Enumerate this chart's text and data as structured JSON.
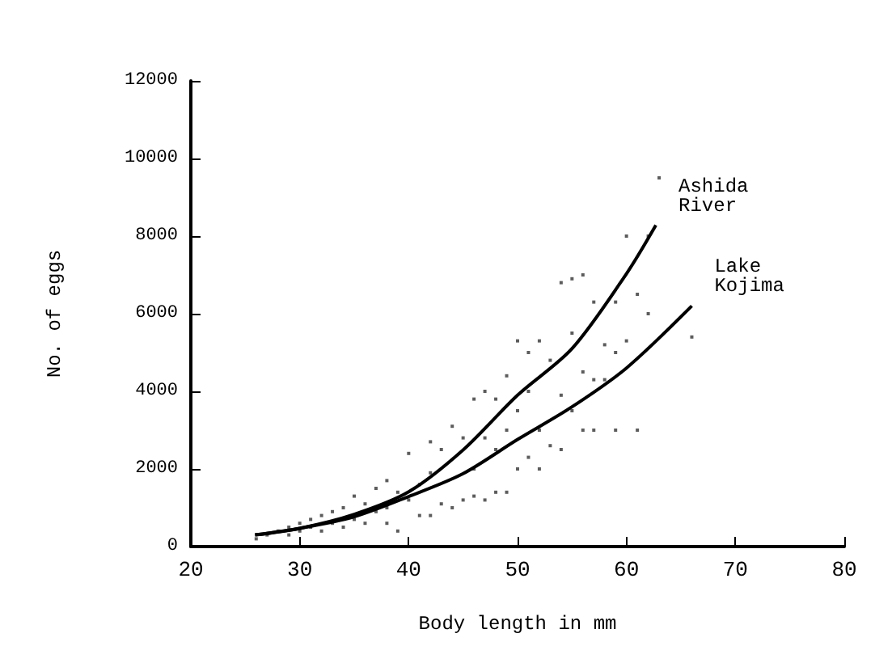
{
  "chart_data": {
    "type": "scatter",
    "xlabel": "Body length in mm",
    "ylabel": "No. of eggs",
    "xlim": [
      20,
      80
    ],
    "xticks": [
      20,
      30,
      40,
      50,
      60,
      70,
      80
    ],
    "ylim": [
      0,
      12000
    ],
    "yticks": [
      0,
      2000,
      4000,
      6000,
      8000,
      10000,
      12000
    ],
    "grid": false,
    "legend": false,
    "series": [
      {
        "color": "#333333",
        "marker": "square",
        "x": [
          26,
          27,
          28,
          29,
          29,
          30,
          30,
          31,
          31,
          32,
          32,
          33,
          33,
          34,
          34,
          35,
          35,
          36,
          36,
          37,
          37,
          38,
          38,
          38,
          39,
          39,
          40,
          40,
          41,
          41,
          42,
          42,
          42,
          43,
          43,
          44,
          44,
          45,
          45,
          46,
          46,
          46,
          47,
          47,
          47,
          48,
          48,
          48,
          49,
          49,
          49,
          50,
          50,
          50,
          51,
          51,
          51,
          52,
          52,
          52,
          53,
          53,
          54,
          54,
          54,
          55,
          55,
          55,
          56,
          56,
          56,
          57,
          57,
          57,
          58,
          58,
          59,
          59,
          59,
          60,
          60,
          61,
          61,
          62,
          62,
          63,
          66
        ],
        "values": [
          200,
          300,
          400,
          500,
          300,
          600,
          400,
          700,
          500,
          800,
          400,
          900,
          600,
          1000,
          500,
          1300,
          700,
          1100,
          600,
          1500,
          900,
          1700,
          1000,
          600,
          1400,
          400,
          2400,
          1200,
          1600,
          800,
          2700,
          1900,
          800,
          2500,
          1100,
          3100,
          1000,
          2800,
          1200,
          3800,
          2000,
          1300,
          4000,
          2800,
          1200,
          3800,
          2500,
          1400,
          4400,
          3000,
          1400,
          5300,
          3500,
          2000,
          5000,
          4000,
          2300,
          5300,
          3000,
          2000,
          4800,
          2600,
          6800,
          3900,
          2500,
          6900,
          5500,
          3500,
          7000,
          4500,
          3000,
          6300,
          4300,
          3000,
          5200,
          4300,
          6300,
          5000,
          3000,
          8000,
          5300,
          6500,
          3000,
          8000,
          6000,
          9500,
          5400
        ]
      },
      {
        "type": "line",
        "name": "Ashida River",
        "color": "#000000",
        "x": [
          25.9,
          30,
          35,
          40,
          45,
          50,
          55,
          60,
          62.7
        ],
        "values": [
          300,
          470,
          830,
          1410,
          2490,
          3900,
          5100,
          7030,
          8280
        ]
      },
      {
        "type": "line",
        "name": "Lake Kojima",
        "color": "#000000",
        "x": [
          25.9,
          30,
          35,
          40,
          45,
          50,
          55,
          60,
          66
        ],
        "values": [
          300,
          470,
          770,
          1290,
          1880,
          2760,
          3600,
          4600,
          6200
        ]
      }
    ]
  }
}
